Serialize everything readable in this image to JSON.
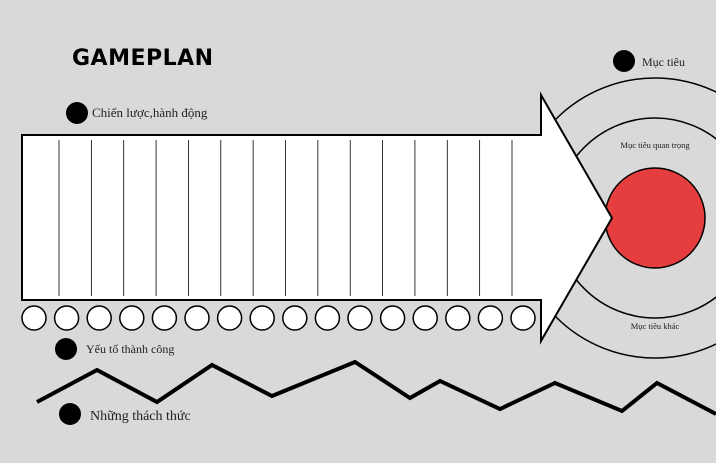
{
  "title": "GAMEPLAN",
  "labels": {
    "strategy": "Chiến lược,hành động",
    "success_factors": "Yếu tố thành công",
    "challenges": "Những thách thức",
    "goal": "Mục tiêu",
    "key_goal": "Mục tiêu quan trọng",
    "other_goal": "Mục tiêu khác"
  },
  "colors": {
    "background": "#d9d9d9",
    "target_center": "#e63e3e",
    "bullet": "#000000"
  },
  "counts": {
    "arrow_columns": 15,
    "circles": 16
  }
}
